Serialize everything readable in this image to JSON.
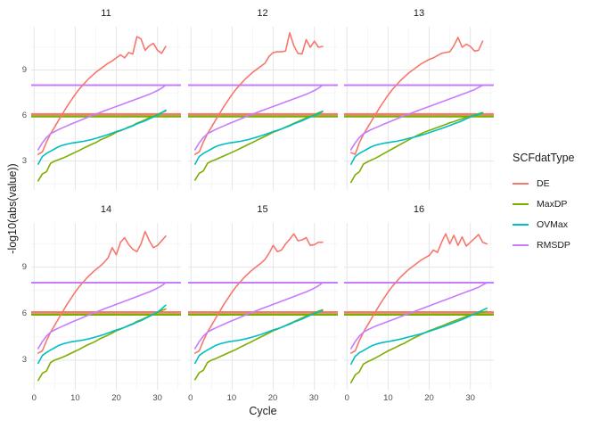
{
  "figure": {
    "y_axis_title": "-log10(abs(value))",
    "x_axis_title": "Cycle",
    "legend": {
      "title": "SCFdatType",
      "entries": [
        {
          "label": "DE",
          "color": "#F8766D"
        },
        {
          "label": "MaxDP",
          "color": "#7CAE00"
        },
        {
          "label": "OVMax",
          "color": "#00BFC4"
        },
        {
          "label": "RMSDP",
          "color": "#C77CFF"
        }
      ]
    }
  },
  "chart_data": {
    "type": "line",
    "title": "",
    "xlabel": "Cycle",
    "ylabel": "-log10(abs(value))",
    "xlim": [
      -0.7,
      35.7
    ],
    "ylim": [
      1.1,
      11.85
    ],
    "x_major_ticks": [
      0,
      10,
      20,
      30
    ],
    "x_minor_ticks": [
      5,
      15,
      25,
      35
    ],
    "y_major_ticks": [
      3,
      6,
      9
    ],
    "y_minor_ticks": [
      1.5,
      4.5,
      7.5,
      10.5
    ],
    "grid": true,
    "grid_major_color": "#E5E5E5",
    "grid_minor_color": "#F0F0F0",
    "tick_text_color": "#4d4d4d",
    "legend_position": "right",
    "legend_title": "SCFdatType",
    "series_colors": {
      "DE": "#F8766D",
      "MaxDP": "#7CAE00",
      "OVMax": "#00BFC4",
      "RMSDP": "#C77CFF"
    },
    "hlines": [
      {
        "series": "RMSDP",
        "y": 8.0,
        "width": 2.0
      },
      {
        "series": "DE",
        "y": 6.09,
        "width": 2.4
      },
      {
        "series": "MaxDP",
        "y": 5.94,
        "width": 2.4
      }
    ],
    "x_is_cycle_starting_at": 1,
    "facets": [
      {
        "label": "11",
        "series": [
          {
            "name": "DE",
            "values": [
              3.45,
              3.6,
              4.25,
              4.8,
              5.25,
              5.7,
              6.15,
              6.6,
              7.0,
              7.4,
              7.75,
              8.05,
              8.35,
              8.6,
              8.85,
              9.05,
              9.25,
              9.45,
              9.6,
              9.8,
              10.0,
              9.8,
              10.15,
              10.05,
              11.2,
              11.05,
              10.3,
              10.6,
              10.75,
              10.3,
              10.1,
              10.55
            ]
          },
          {
            "name": "MaxDP",
            "values": [
              1.7,
              2.15,
              2.3,
              2.85,
              3.0,
              3.1,
              3.2,
              3.32,
              3.45,
              3.58,
              3.7,
              3.85,
              3.98,
              4.1,
              4.22,
              4.38,
              4.5,
              4.62,
              4.75,
              4.9,
              5.0,
              5.12,
              5.25,
              5.35,
              5.5,
              5.6,
              5.72,
              5.85,
              5.95,
              6.08,
              6.2,
              6.3
            ]
          },
          {
            "name": "OVMax",
            "values": [
              2.8,
              3.3,
              3.5,
              3.65,
              3.8,
              3.95,
              4.05,
              4.12,
              4.18,
              4.22,
              4.26,
              4.3,
              4.36,
              4.42,
              4.5,
              4.58,
              4.66,
              4.75,
              4.85,
              4.95,
              5.03,
              5.12,
              5.22,
              5.32,
              5.45,
              5.55,
              5.65,
              5.78,
              5.9,
              6.02,
              6.18,
              6.35
            ]
          },
          {
            "name": "RMSDP",
            "values": [
              3.75,
              4.2,
              4.55,
              4.8,
              4.95,
              5.08,
              5.2,
              5.32,
              5.44,
              5.55,
              5.66,
              5.77,
              5.88,
              6.0,
              6.1,
              6.2,
              6.3,
              6.4,
              6.5,
              6.6,
              6.7,
              6.8,
              6.9,
              7.0,
              7.1,
              7.2,
              7.3,
              7.4,
              7.52,
              7.65,
              7.8,
              8.0
            ]
          }
        ]
      },
      {
        "label": "12",
        "series": [
          {
            "name": "DE",
            "values": [
              3.45,
              3.6,
              4.25,
              4.8,
              5.25,
              5.7,
              6.15,
              6.6,
              7.0,
              7.4,
              7.75,
              8.05,
              8.35,
              8.6,
              8.85,
              9.05,
              9.25,
              9.45,
              9.9,
              10.15,
              10.2,
              10.2,
              10.25,
              11.45,
              10.6,
              10.1,
              10.05,
              11.0,
              10.5,
              10.9,
              10.5,
              10.55
            ]
          },
          {
            "name": "MaxDP",
            "values": [
              1.75,
              2.2,
              2.35,
              2.85,
              3.0,
              3.1,
              3.22,
              3.34,
              3.46,
              3.58,
              3.7,
              3.84,
              3.97,
              4.1,
              4.23,
              4.37,
              4.5,
              4.63,
              4.76,
              4.9,
              5.0,
              5.12,
              5.24,
              5.36,
              5.48,
              5.6,
              5.72,
              5.84,
              5.95,
              6.06,
              6.18,
              6.28
            ]
          },
          {
            "name": "OVMax",
            "values": [
              2.8,
              3.3,
              3.5,
              3.65,
              3.8,
              3.95,
              4.05,
              4.12,
              4.18,
              4.22,
              4.26,
              4.3,
              4.36,
              4.42,
              4.5,
              4.58,
              4.66,
              4.75,
              4.85,
              4.95,
              5.03,
              5.12,
              5.22,
              5.32,
              5.45,
              5.55,
              5.65,
              5.78,
              5.9,
              6.0,
              6.12,
              6.25
            ]
          },
          {
            "name": "RMSDP",
            "values": [
              3.75,
              4.2,
              4.55,
              4.8,
              4.95,
              5.08,
              5.2,
              5.32,
              5.44,
              5.55,
              5.66,
              5.77,
              5.88,
              6.0,
              6.1,
              6.2,
              6.3,
              6.4,
              6.5,
              6.6,
              6.7,
              6.8,
              6.9,
              7.0,
              7.1,
              7.2,
              7.3,
              7.4,
              7.52,
              7.65,
              7.8,
              8.0
            ]
          }
        ]
      },
      {
        "label": "13",
        "series": [
          {
            "name": "DE",
            "values": [
              3.55,
              3.45,
              4.2,
              4.75,
              5.2,
              5.65,
              6.1,
              6.55,
              6.95,
              7.35,
              7.7,
              8.0,
              8.3,
              8.55,
              8.8,
              9.0,
              9.2,
              9.4,
              9.55,
              9.7,
              9.8,
              9.95,
              10.1,
              10.15,
              10.2,
              10.6,
              11.15,
              10.5,
              10.7,
              10.55,
              10.25,
              10.3,
              10.9
            ]
          },
          {
            "name": "MaxDP",
            "values": [
              1.6,
              2.1,
              2.3,
              2.8,
              2.95,
              3.08,
              3.2,
              3.35,
              3.5,
              3.65,
              3.8,
              3.95,
              4.1,
              4.25,
              4.4,
              4.55,
              4.68,
              4.8,
              4.92,
              5.02,
              5.12,
              5.22,
              5.32,
              5.42,
              5.52,
              5.6,
              5.7,
              5.78,
              5.88,
              5.96,
              6.05,
              6.12,
              6.2
            ]
          },
          {
            "name": "OVMax",
            "values": [
              2.8,
              3.3,
              3.5,
              3.65,
              3.8,
              3.95,
              4.05,
              4.12,
              4.18,
              4.22,
              4.26,
              4.3,
              4.36,
              4.42,
              4.5,
              4.56,
              4.62,
              4.7,
              4.78,
              4.88,
              4.97,
              5.06,
              5.15,
              5.25,
              5.35,
              5.45,
              5.55,
              5.65,
              5.78,
              5.9,
              6.0,
              6.08,
              6.15
            ]
          },
          {
            "name": "RMSDP",
            "values": [
              3.75,
              4.2,
              4.55,
              4.8,
              4.95,
              5.08,
              5.2,
              5.32,
              5.44,
              5.55,
              5.66,
              5.77,
              5.88,
              6.0,
              6.1,
              6.2,
              6.3,
              6.4,
              6.5,
              6.6,
              6.7,
              6.8,
              6.9,
              7.0,
              7.1,
              7.2,
              7.3,
              7.4,
              7.5,
              7.6,
              7.7,
              7.85,
              8.0
            ]
          }
        ]
      },
      {
        "label": "14",
        "series": [
          {
            "name": "DE",
            "values": [
              3.45,
              3.6,
              4.25,
              4.8,
              5.25,
              5.7,
              6.15,
              6.6,
              7.0,
              7.4,
              7.75,
              8.05,
              8.35,
              8.6,
              8.85,
              9.05,
              9.3,
              9.6,
              10.25,
              9.8,
              10.6,
              10.9,
              10.45,
              10.15,
              10.0,
              10.5,
              11.3,
              10.7,
              10.25,
              10.4,
              10.7,
              11.0
            ]
          },
          {
            "name": "MaxDP",
            "values": [
              1.7,
              2.15,
              2.3,
              2.85,
              3.0,
              3.1,
              3.2,
              3.32,
              3.45,
              3.58,
              3.7,
              3.85,
              3.98,
              4.1,
              4.22,
              4.38,
              4.5,
              4.62,
              4.75,
              4.9,
              5.0,
              5.12,
              5.25,
              5.35,
              5.5,
              5.6,
              5.72,
              5.85,
              5.95,
              6.08,
              6.2,
              6.3
            ]
          },
          {
            "name": "OVMax",
            "values": [
              2.8,
              3.3,
              3.5,
              3.65,
              3.8,
              3.95,
              4.05,
              4.12,
              4.18,
              4.22,
              4.26,
              4.3,
              4.36,
              4.42,
              4.5,
              4.58,
              4.66,
              4.75,
              4.85,
              4.95,
              5.03,
              5.12,
              5.22,
              5.32,
              5.45,
              5.55,
              5.68,
              5.82,
              5.95,
              6.1,
              6.3,
              6.55
            ]
          },
          {
            "name": "RMSDP",
            "values": [
              3.75,
              4.2,
              4.55,
              4.8,
              4.95,
              5.08,
              5.2,
              5.32,
              5.44,
              5.55,
              5.66,
              5.77,
              5.88,
              6.0,
              6.1,
              6.2,
              6.3,
              6.4,
              6.5,
              6.6,
              6.7,
              6.8,
              6.9,
              7.0,
              7.1,
              7.2,
              7.3,
              7.4,
              7.52,
              7.65,
              7.8,
              8.0
            ]
          }
        ]
      },
      {
        "label": "15",
        "series": [
          {
            "name": "DE",
            "values": [
              3.45,
              3.6,
              4.25,
              4.8,
              5.25,
              5.7,
              6.15,
              6.6,
              7.0,
              7.4,
              7.75,
              8.05,
              8.35,
              8.6,
              8.85,
              9.05,
              9.25,
              9.5,
              9.9,
              10.4,
              10.0,
              10.1,
              10.5,
              10.8,
              11.15,
              10.7,
              10.75,
              10.9,
              10.4,
              10.45,
              10.6,
              10.6
            ]
          },
          {
            "name": "MaxDP",
            "values": [
              1.75,
              2.2,
              2.35,
              2.85,
              3.0,
              3.1,
              3.22,
              3.34,
              3.46,
              3.58,
              3.7,
              3.84,
              3.97,
              4.1,
              4.23,
              4.37,
              4.5,
              4.63,
              4.76,
              4.9,
              5.0,
              5.12,
              5.24,
              5.36,
              5.48,
              5.6,
              5.72,
              5.84,
              5.95,
              6.06,
              6.16,
              6.25
            ]
          },
          {
            "name": "OVMax",
            "values": [
              2.8,
              3.3,
              3.5,
              3.65,
              3.8,
              3.95,
              4.05,
              4.12,
              4.18,
              4.22,
              4.26,
              4.3,
              4.36,
              4.42,
              4.5,
              4.58,
              4.66,
              4.75,
              4.85,
              4.95,
              5.03,
              5.12,
              5.22,
              5.32,
              5.45,
              5.55,
              5.65,
              5.78,
              5.9,
              6.0,
              6.1,
              6.2
            ]
          },
          {
            "name": "RMSDP",
            "values": [
              3.75,
              4.2,
              4.55,
              4.8,
              4.95,
              5.08,
              5.2,
              5.32,
              5.44,
              5.55,
              5.66,
              5.77,
              5.88,
              6.0,
              6.1,
              6.2,
              6.3,
              6.4,
              6.5,
              6.6,
              6.7,
              6.8,
              6.9,
              7.0,
              7.1,
              7.2,
              7.3,
              7.4,
              7.52,
              7.65,
              7.8,
              8.0
            ]
          }
        ]
      },
      {
        "label": "16",
        "series": [
          {
            "name": "DE",
            "values": [
              3.45,
              3.6,
              4.25,
              4.8,
              5.25,
              5.7,
              6.15,
              6.6,
              7.0,
              7.4,
              7.75,
              8.05,
              8.35,
              8.6,
              8.85,
              9.05,
              9.25,
              9.45,
              9.6,
              9.75,
              10.1,
              9.95,
              10.6,
              11.15,
              10.5,
              11.05,
              10.4,
              10.95,
              10.35,
              10.6,
              10.85,
              11.1,
              10.6,
              10.5
            ]
          },
          {
            "name": "MaxDP",
            "values": [
              1.55,
              2.05,
              2.25,
              2.75,
              2.9,
              3.02,
              3.15,
              3.3,
              3.45,
              3.6,
              3.72,
              3.85,
              3.98,
              4.1,
              4.25,
              4.4,
              4.52,
              4.65,
              4.78,
              4.9,
              5.0,
              5.1,
              5.2,
              5.3,
              5.42,
              5.52,
              5.62,
              5.72,
              5.82,
              5.9,
              5.98,
              6.05,
              6.1,
              6.15
            ]
          },
          {
            "name": "OVMax",
            "values": [
              2.75,
              3.25,
              3.48,
              3.62,
              3.78,
              3.92,
              4.02,
              4.1,
              4.16,
              4.2,
              4.25,
              4.3,
              4.36,
              4.42,
              4.5,
              4.56,
              4.63,
              4.7,
              4.78,
              4.86,
              4.95,
              5.04,
              5.13,
              5.22,
              5.32,
              5.42,
              5.52,
              5.62,
              5.74,
              5.86,
              5.98,
              6.1,
              6.22,
              6.35
            ]
          },
          {
            "name": "RMSDP",
            "values": [
              3.75,
              4.2,
              4.55,
              4.8,
              4.95,
              5.08,
              5.2,
              5.3,
              5.4,
              5.5,
              5.6,
              5.7,
              5.8,
              5.9,
              6.0,
              6.1,
              6.2,
              6.3,
              6.4,
              6.5,
              6.6,
              6.7,
              6.8,
              6.9,
              7.0,
              7.1,
              7.2,
              7.3,
              7.4,
              7.5,
              7.6,
              7.7,
              7.85,
              8.0
            ]
          }
        ]
      }
    ]
  }
}
